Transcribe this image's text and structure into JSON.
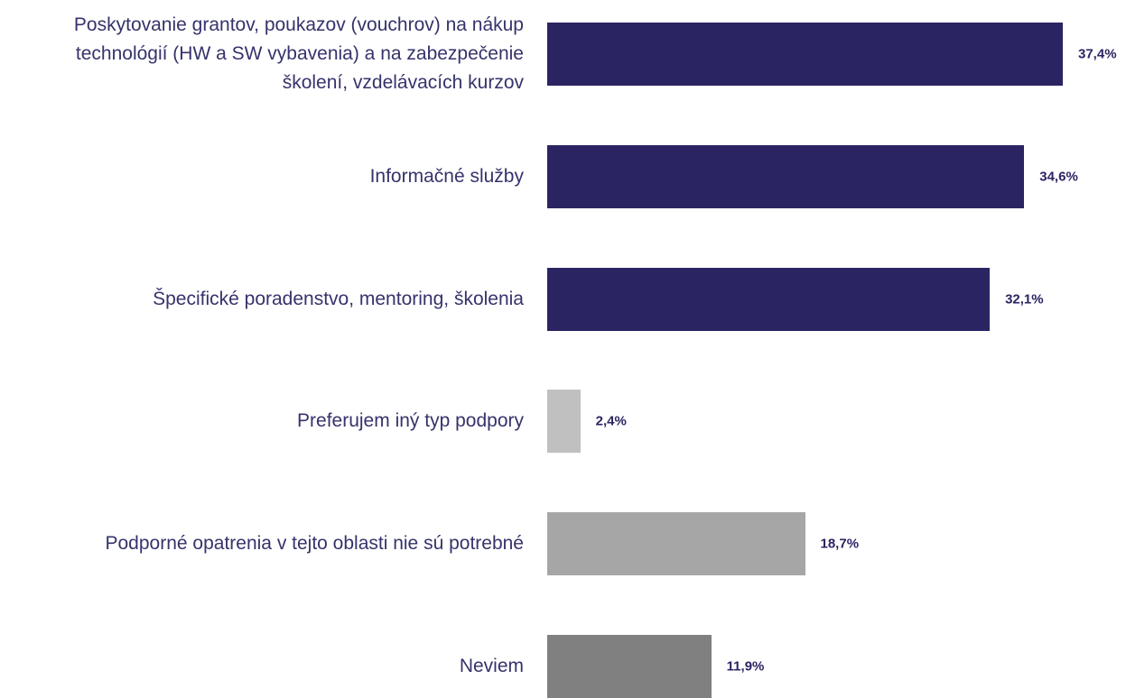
{
  "chart_data": {
    "type": "bar",
    "orientation": "horizontal",
    "categories": [
      "Poskytovanie grantov, poukazov (vouchrov) na nákup\ntechnológií (HW a SW vybavenia) a na zabezpečenie\nškolení, vzdelávacích kurzov",
      "Informačné služby",
      "Špecifické poradenstvo, mentoring, školenia",
      "Preferujem iný typ podpory",
      "Podporné opatrenia v tejto oblasti nie sú potrebné",
      "Neviem"
    ],
    "values": [
      37.4,
      34.6,
      32.1,
      2.4,
      18.7,
      11.9
    ],
    "value_labels": [
      "37,4%",
      "34,6%",
      "32,1%",
      "2,4%",
      "18,7%",
      "11,9%"
    ],
    "colors": [
      "#2b2463",
      "#2b2463",
      "#2b2463",
      "#c0c0c0",
      "#a6a6a6",
      "#808080"
    ]
  }
}
